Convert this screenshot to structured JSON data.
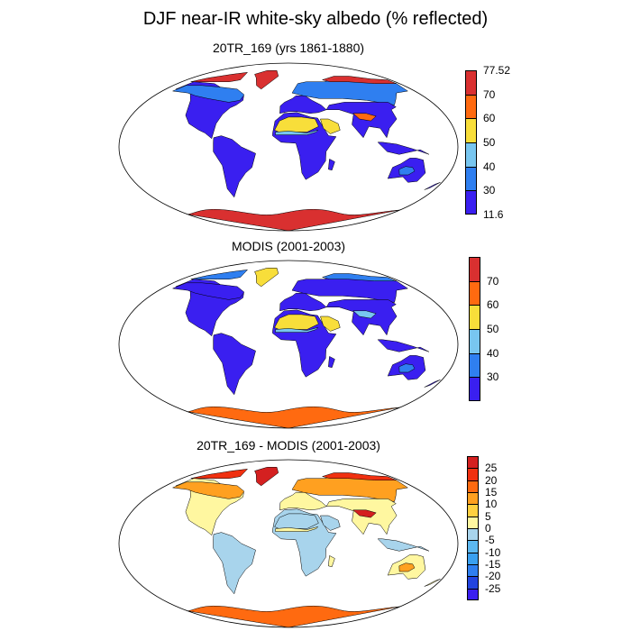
{
  "title": "DJF near-IR white-sky albedo (% reflected)",
  "panels": [
    {
      "id": "model",
      "title": "20TR_169 (yrs 1861-1880)",
      "colorbar": {
        "colors": [
          "#3a1ff0",
          "#2f7ff0",
          "#78c6f0",
          "#f8de3a",
          "#ff6a10",
          "#d93030"
        ],
        "labels": [
          "11.6",
          "30",
          "40",
          "50",
          "60",
          "70",
          "77.52"
        ]
      },
      "region_colors": {
        "arctic_lands": "#d93030",
        "boreal": "#2f7ff0",
        "midlat": "#3a1ff0",
        "desert": "#f8de3a",
        "desert_edge": "#78c6f0",
        "tropics": "#3a1ff0",
        "australia": "#3a1ff0",
        "aus_center": "#2f7ff0",
        "antarctica": "#d93030",
        "greenland": "#d93030",
        "tibet": "#ff6a10"
      }
    },
    {
      "id": "obs",
      "title": "MODIS (2001-2003)",
      "colorbar": {
        "colors": [
          "#3a1ff0",
          "#2f7ff0",
          "#78c6f0",
          "#f8de3a",
          "#ff6a10",
          "#d93030"
        ],
        "labels": [
          "",
          "30",
          "40",
          "50",
          "60",
          "70",
          ""
        ]
      },
      "region_colors": {
        "arctic_lands": "#2f7ff0",
        "boreal": "#3a1ff0",
        "midlat": "#3a1ff0",
        "desert": "#f8de3a",
        "desert_edge": "#78c6f0",
        "tropics": "#3a1ff0",
        "australia": "#3a1ff0",
        "aus_center": "#2f7ff0",
        "antarctica": "#ff6a10",
        "greenland": "#f8de3a",
        "tibet": "#78c6f0"
      }
    },
    {
      "id": "diff",
      "title": "20TR_169 - MODIS (2001-2003)",
      "colorbar": {
        "colors": [
          "#3a1ff0",
          "#2244e0",
          "#2f7ff0",
          "#3aa0f0",
          "#5cb8f0",
          "#a8d4ec",
          "#fff7a0",
          "#ffd040",
          "#ffa020",
          "#ff6a10",
          "#f03010",
          "#d42020"
        ],
        "labels": [
          "",
          "-25",
          "-20",
          "-15",
          "-10",
          "-5",
          "0",
          "5",
          "10",
          "15",
          "20",
          "25",
          ""
        ]
      },
      "region_colors": {
        "arctic_lands": "#f03010",
        "boreal": "#ffa020",
        "midlat": "#fff7a0",
        "desert": "#a8d4ec",
        "desert_edge": "#fff7a0",
        "tropics": "#a8d4ec",
        "australia": "#fff7a0",
        "aus_center": "#ffa020",
        "antarctica": "#ff6a10",
        "greenland": "#d42020",
        "tibet": "#d42020"
      }
    }
  ]
}
